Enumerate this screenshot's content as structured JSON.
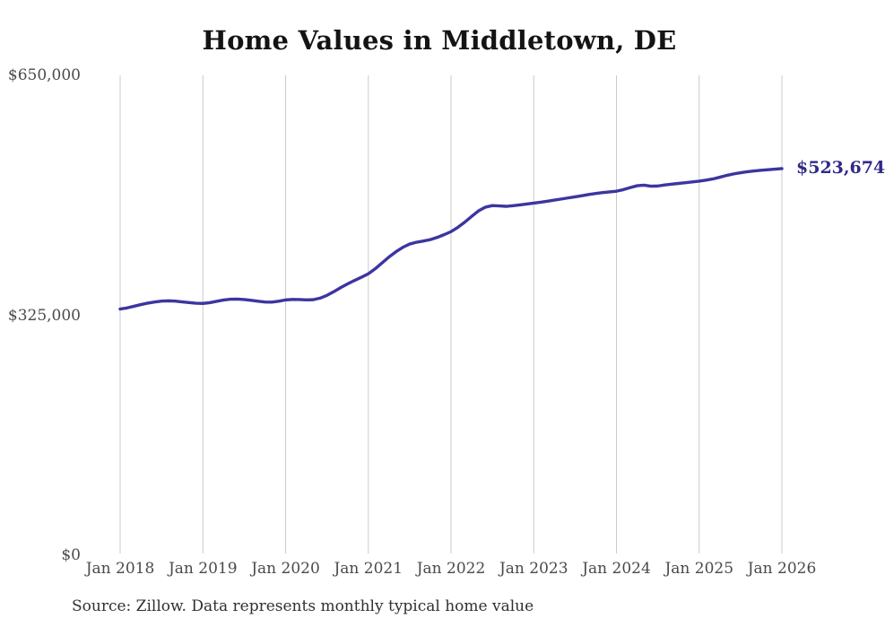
{
  "page": {
    "title": "Home Values in Middletown, DE",
    "source_note": "Source: Zillow. Data represents monthly typical home value"
  },
  "chart_data": {
    "type": "line",
    "title": "Home Values in Middletown, DE",
    "xlabel": "",
    "ylabel": "",
    "ylim": [
      0,
      650000
    ],
    "grid": "vertical-only",
    "legend": "none",
    "line_color": "#3c35a0",
    "grid_color": "#cbcbcb",
    "x_tick_labels": [
      "Jan 2018",
      "Jan 2019",
      "Jan 2020",
      "Jan 2021",
      "Jan 2022",
      "Jan 2023",
      "Jan 2024",
      "Jan 2025",
      "Jan 2026"
    ],
    "y_ticks": [
      {
        "label": "$650,000",
        "value": 650000
      },
      {
        "label": "$325,000",
        "value": 325000
      },
      {
        "label": "$0",
        "value": 0
      }
    ],
    "end_label": {
      "text": "$523,674",
      "value": 523674,
      "color": "#2f2a88"
    },
    "series_name": "Monthly typical home value",
    "x_start": "Jan 2018",
    "x_end": "Jan 2026",
    "frequency": "monthly",
    "values": [
      333500,
      335000,
      337200,
      339500,
      341500,
      343000,
      344200,
      344600,
      344200,
      343200,
      342200,
      341300,
      341100,
      342100,
      343900,
      345700,
      346800,
      347000,
      346400,
      345300,
      344000,
      343000,
      342900,
      344100,
      345800,
      346500,
      346300,
      345900,
      346100,
      348200,
      352000,
      357000,
      362500,
      367500,
      372200,
      376600,
      381200,
      388000,
      396000,
      404000,
      411000,
      417000,
      421500,
      424000,
      425600,
      427500,
      430500,
      434200,
      438300,
      444200,
      451200,
      459000,
      466500,
      471500,
      473600,
      473100,
      472600,
      473500,
      474500,
      475700,
      477000,
      478100,
      479500,
      481000,
      482500,
      484000,
      485500,
      487000,
      488600,
      490000,
      491200,
      492100,
      493100,
      495200,
      498000,
      500500,
      501200,
      499900,
      500100,
      501500,
      502600,
      503600,
      504600,
      505600,
      506700,
      508100,
      509700,
      512000,
      514500,
      516500,
      518100,
      519500,
      520600,
      521400,
      522200,
      522900,
      523674
    ]
  }
}
